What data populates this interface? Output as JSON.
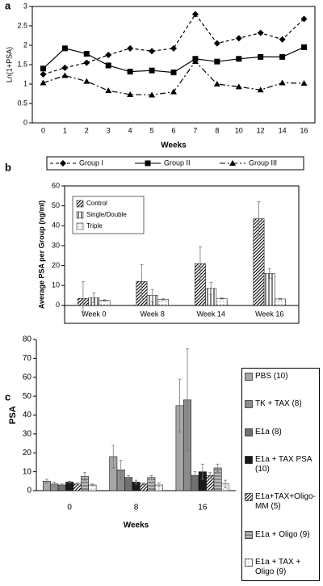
{
  "chart_data": [
    {
      "panel": "a",
      "type": "line",
      "x_label": "Weeks",
      "y_label": "Ln(1+PSA)",
      "categories": [
        "0",
        "1",
        "2",
        "3",
        "4",
        "5",
        "6",
        "7",
        "8",
        "10",
        "12",
        "14",
        "16"
      ],
      "ylim": [
        0,
        3
      ],
      "yticks": [
        0,
        0.5,
        1,
        1.5,
        2,
        2.5,
        3
      ],
      "legend": "bottom",
      "series": [
        {
          "name": "Group I",
          "color": "#000000",
          "line_style": "dashed",
          "marker": "diamond",
          "values": [
            1.25,
            1.42,
            1.55,
            1.75,
            1.92,
            1.85,
            1.92,
            2.8,
            2.05,
            2.18,
            2.32,
            2.15,
            2.68
          ]
        },
        {
          "name": "Group II",
          "color": "#000000",
          "line_style": "solid",
          "marker": "square",
          "values": [
            1.4,
            1.92,
            1.78,
            1.48,
            1.32,
            1.35,
            1.3,
            1.65,
            1.58,
            1.65,
            1.7,
            1.7,
            1.95
          ]
        },
        {
          "name": "Group III",
          "color": "#000000",
          "line_style": "dashdot",
          "marker": "triangle",
          "values": [
            1.03,
            1.22,
            1.07,
            0.83,
            0.73,
            0.72,
            0.8,
            1.58,
            1.0,
            0.93,
            0.85,
            1.03,
            1.02
          ]
        }
      ]
    },
    {
      "panel": "b",
      "type": "bar",
      "y_label": "Average PSA per Group (ng/ml)",
      "categories": [
        "Week 0",
        "Week 8",
        "Week 14",
        "Week 16"
      ],
      "ylim": [
        -9,
        60
      ],
      "yticks": [
        0,
        10,
        20,
        30,
        40,
        50,
        60
      ],
      "legend": "upper left",
      "series": [
        {
          "name": "Control",
          "color": "#000000",
          "pattern": "diagonal",
          "values": [
            3.5,
            12,
            21,
            43.5
          ],
          "errors": [
            8.5,
            8.5,
            8.5,
            8.5
          ]
        },
        {
          "name": "Single/Double",
          "color": "#000000",
          "pattern": "vertical",
          "values": [
            3.8,
            5,
            8.5,
            16
          ],
          "errors": [
            2.5,
            3,
            3,
            2.5
          ]
        },
        {
          "name": "Triple",
          "color": "#555555",
          "pattern": "dots",
          "values": [
            2.5,
            3,
            3.5,
            3.2
          ],
          "errors": [
            0.3,
            0.3,
            0.3,
            0.3
          ]
        }
      ]
    },
    {
      "panel": "c",
      "type": "bar",
      "x_label": "Weeks",
      "y_label": "PSA",
      "categories": [
        "0",
        "8",
        "16"
      ],
      "ylim": [
        0,
        80
      ],
      "yticks": [
        0,
        10,
        20,
        30,
        40,
        50,
        60,
        70,
        80
      ],
      "legend": "right",
      "series": [
        {
          "name": "PBS (10)",
          "color": "#a6a6a6",
          "values": [
            5,
            18,
            45
          ],
          "errors": [
            1,
            6,
            14
          ]
        },
        {
          "name": "TK + TAX (8)",
          "color": "#8c8c8c",
          "values": [
            3.5,
            11,
            48
          ],
          "errors": [
            1,
            5,
            27
          ]
        },
        {
          "name": "E1a (8)",
          "color": "#707070",
          "values": [
            3,
            7,
            8
          ],
          "errors": [
            0.5,
            1,
            2
          ]
        },
        {
          "name": "E1a + TAX PSA (10)",
          "color": "#1a1a1a",
          "values": [
            4.5,
            4.5,
            10
          ],
          "errors": [
            0.5,
            1,
            4
          ]
        },
        {
          "name": "E1a+TAX+Oligo-MM (5)",
          "color": "#000000",
          "pattern": "diagonal",
          "values": [
            3.5,
            3.5,
            8
          ],
          "errors": [
            0.5,
            0.5,
            1.5
          ]
        },
        {
          "name": "E1a + Oligo (9)",
          "color": "#606060",
          "pattern": "horizontal",
          "values": [
            7.5,
            7,
            12
          ],
          "errors": [
            2,
            1,
            2
          ]
        },
        {
          "name": "E1a + TAX + Oligo (9)",
          "color": "#777777",
          "pattern": "dots",
          "values": [
            3,
            3,
            3.5
          ],
          "errors": [
            0.5,
            1,
            2
          ]
        }
      ]
    }
  ]
}
